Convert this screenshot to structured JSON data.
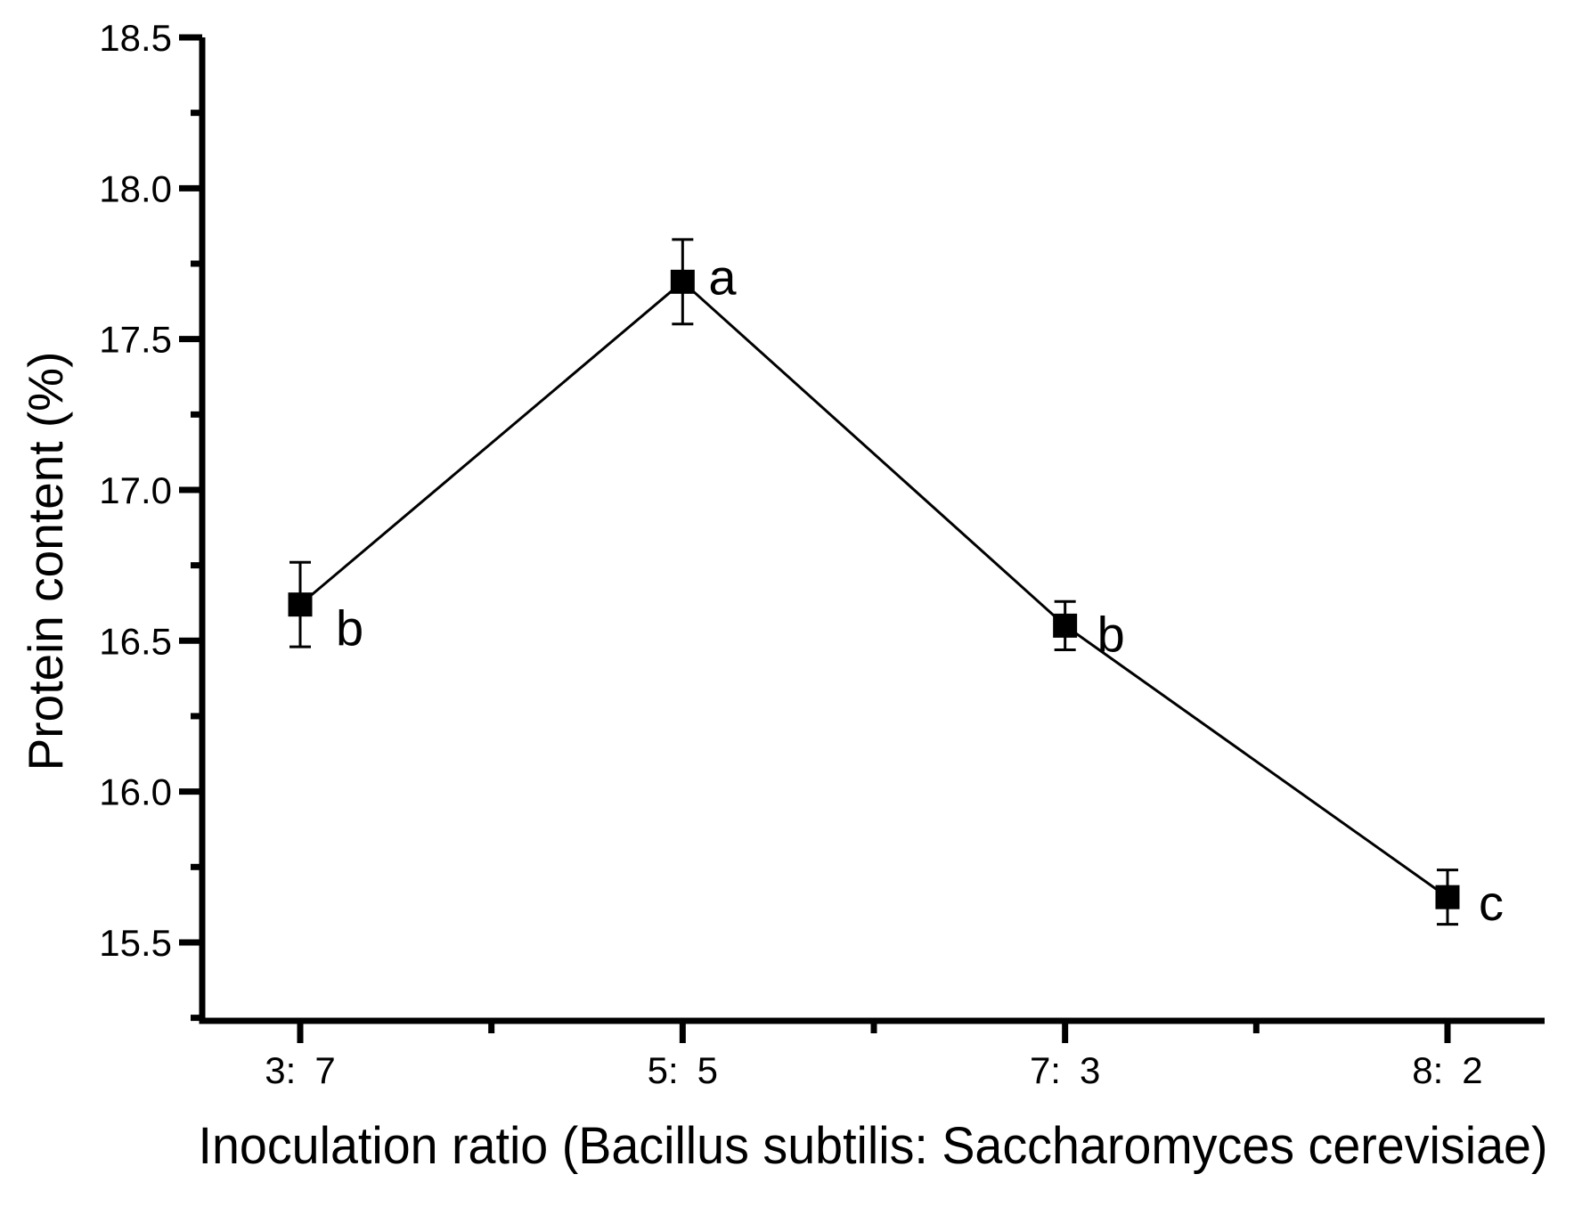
{
  "chart_data": {
    "type": "line",
    "title": "",
    "xlabel": "Inoculation ratio (Bacillus subtilis: Saccharomyces cerevisiae)",
    "ylabel": "Protein content (%)",
    "x_categories": [
      "3: 7",
      "5: 5",
      "7: 3",
      "8: 2"
    ],
    "series": [
      {
        "name": "Protein content",
        "values": [
          16.62,
          17.69,
          16.55,
          15.65
        ],
        "errors": [
          0.14,
          0.14,
          0.08,
          0.09
        ],
        "point_labels": [
          "b",
          "a",
          "b",
          "c"
        ],
        "marker": "filled-square",
        "color": "#000000"
      }
    ],
    "ylim": [
      15.24,
      18.5
    ],
    "yticks_major": [
      18.5,
      18.0,
      17.5,
      17.0,
      16.5,
      16.0,
      15.5
    ],
    "ytick_labels": [
      "18.5",
      "18.0",
      "17.5",
      "17.0",
      "16.5",
      "16.0",
      "15.5"
    ],
    "ytick_minor_step": 0.25,
    "grid": false,
    "legend": "none",
    "axis_color": "#000000",
    "background": "#ffffff"
  }
}
